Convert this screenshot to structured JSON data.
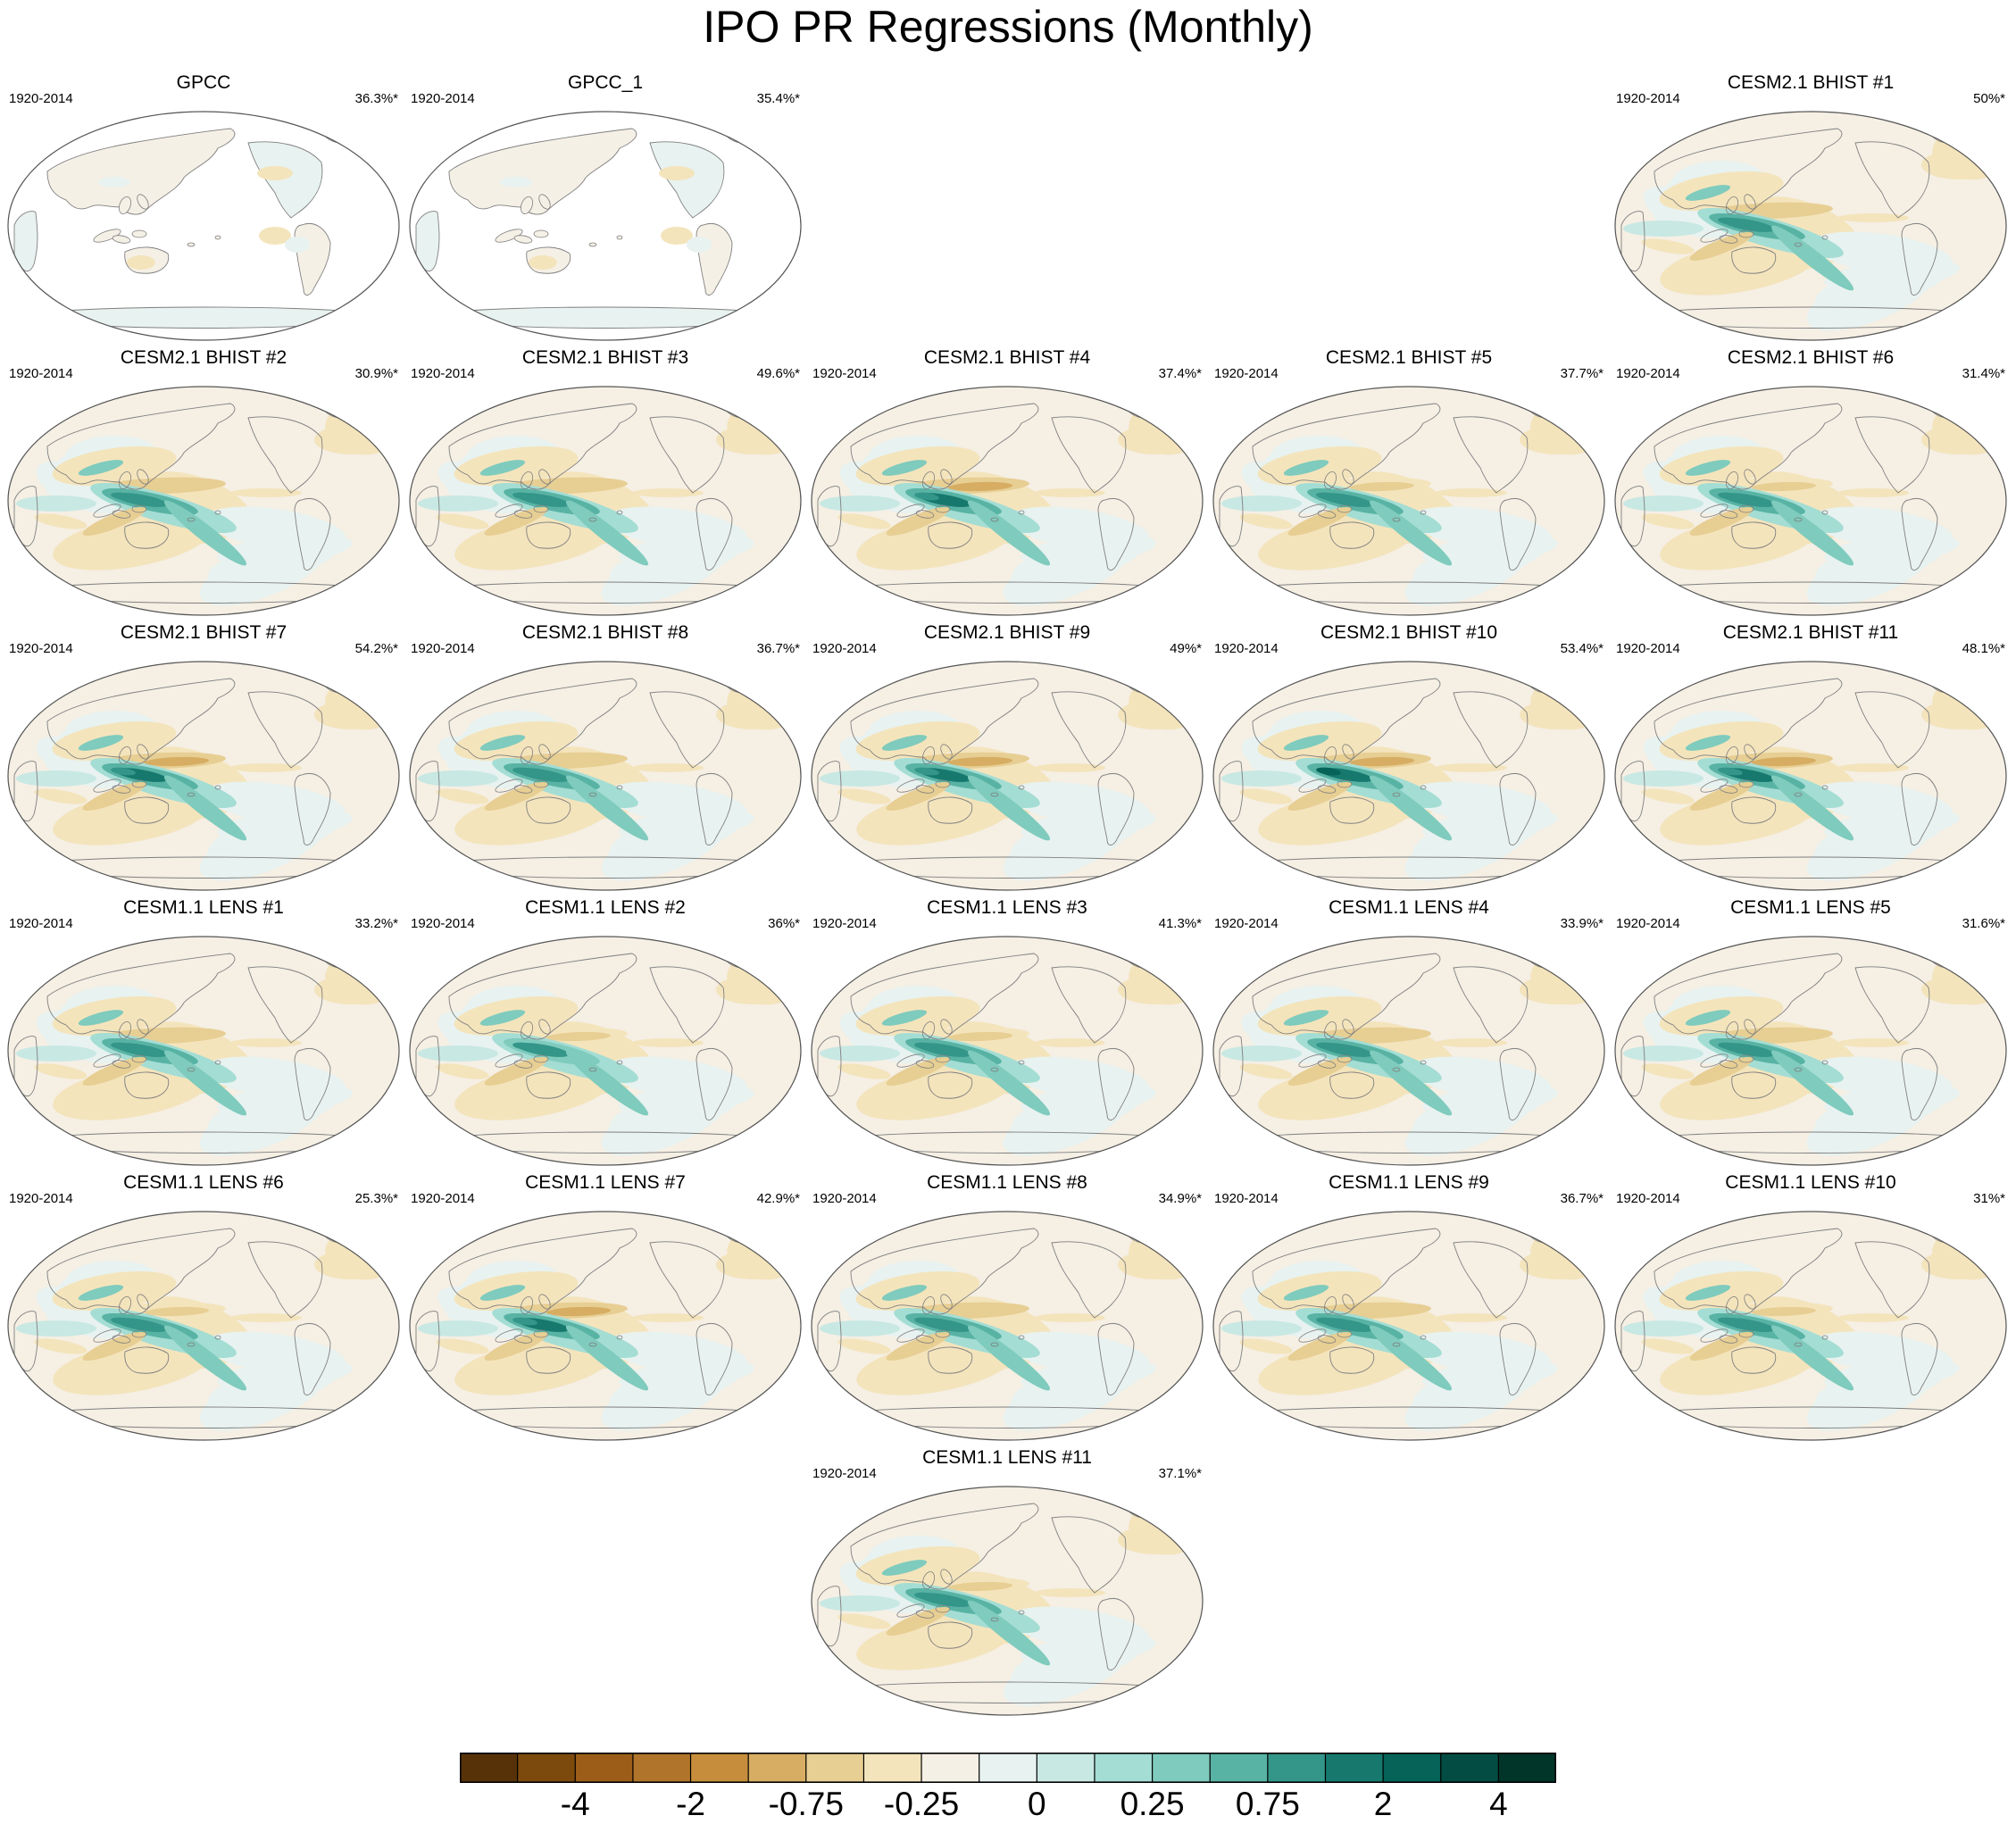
{
  "title": "IPO PR Regressions (Monthly)",
  "colors": {
    "land": "#ffffff",
    "neutral": "#f5efe4",
    "coast": "#7f7f7f",
    "outline": "#555555"
  },
  "colorbar": {
    "colors": [
      "#573209",
      "#7d4a0e",
      "#9b5d18",
      "#b0752a",
      "#c68e3c",
      "#d6ad62",
      "#e7ce93",
      "#f4e4bc",
      "#f5f0e6",
      "#e8f2f0",
      "#c8e8e3",
      "#a4ddd4",
      "#7fcbbd",
      "#58b3a4",
      "#349589",
      "#17796e",
      "#066358",
      "#024c43",
      "#013529"
    ],
    "labels": [
      {
        "text": "-4",
        "index": 2
      },
      {
        "text": "-2",
        "index": 4
      },
      {
        "text": "-0.75",
        "index": 6
      },
      {
        "text": "-0.25",
        "index": 8
      },
      {
        "text": "0",
        "index": 10
      },
      {
        "text": "0.25",
        "index": 12
      },
      {
        "text": "0.75",
        "index": 14
      },
      {
        "text": "2",
        "index": 16
      },
      {
        "text": "4",
        "index": 18
      }
    ]
  },
  "panels": [
    {
      "title": "GPCC",
      "period": "1920-2014",
      "pct": "36.3%*",
      "row": 0,
      "col": 0,
      "type": "obs",
      "strength": 0.3
    },
    {
      "title": "GPCC_1",
      "period": "1920-2014",
      "pct": "35.4%*",
      "row": 0,
      "col": 1,
      "type": "obs",
      "strength": 0.3
    },
    {
      "title": "CESM2.1 BHIST #1",
      "period": "1920-2014",
      "pct": "50%*",
      "row": 0,
      "col": 4,
      "type": "model",
      "strength": 0.8
    },
    {
      "title": "CESM2.1 BHIST #2",
      "period": "1920-2014",
      "pct": "30.9%*",
      "row": 1,
      "col": 0,
      "type": "model",
      "strength": 0.75
    },
    {
      "title": "CESM2.1 BHIST #3",
      "period": "1920-2014",
      "pct": "49.6%*",
      "row": 1,
      "col": 1,
      "type": "model",
      "strength": 0.75
    },
    {
      "title": "CESM2.1 BHIST #4",
      "period": "1920-2014",
      "pct": "37.4%*",
      "row": 1,
      "col": 2,
      "type": "model",
      "strength": 0.9
    },
    {
      "title": "CESM2.1 BHIST #5",
      "period": "1920-2014",
      "pct": "37.7%*",
      "row": 1,
      "col": 3,
      "type": "model",
      "strength": 0.7
    },
    {
      "title": "CESM2.1 BHIST #6",
      "period": "1920-2014",
      "pct": "31.4%*",
      "row": 1,
      "col": 4,
      "type": "model",
      "strength": 0.65
    },
    {
      "title": "CESM2.1 BHIST #7",
      "period": "1920-2014",
      "pct": "54.2%*",
      "row": 2,
      "col": 0,
      "type": "model",
      "strength": 0.95
    },
    {
      "title": "CESM2.1 BHIST #8",
      "period": "1920-2014",
      "pct": "36.7%*",
      "row": 2,
      "col": 1,
      "type": "model",
      "strength": 0.85
    },
    {
      "title": "CESM2.1 BHIST #9",
      "period": "1920-2014",
      "pct": "49%*",
      "row": 2,
      "col": 2,
      "type": "model",
      "strength": 0.9
    },
    {
      "title": "CESM2.1 BHIST #10",
      "period": "1920-2014",
      "pct": "53.4%*",
      "row": 2,
      "col": 3,
      "type": "model",
      "strength": 1.0
    },
    {
      "title": "CESM2.1 BHIST #11",
      "period": "1920-2014",
      "pct": "48.1%*",
      "row": 2,
      "col": 4,
      "type": "model",
      "strength": 0.95
    },
    {
      "title": "CESM1.1 LENS #1",
      "period": "1920-2014",
      "pct": "33.2%*",
      "row": 3,
      "col": 0,
      "type": "model",
      "strength": 0.75
    },
    {
      "title": "CESM1.1 LENS #2",
      "period": "1920-2014",
      "pct": "36%*",
      "row": 3,
      "col": 1,
      "type": "model",
      "strength": 0.5
    },
    {
      "title": "CESM1.1 LENS #3",
      "period": "1920-2014",
      "pct": "41.3%*",
      "row": 3,
      "col": 2,
      "type": "model",
      "strength": 0.7
    },
    {
      "title": "CESM1.1 LENS #4",
      "period": "1920-2014",
      "pct": "33.9%*",
      "row": 3,
      "col": 3,
      "type": "model",
      "strength": 0.75
    },
    {
      "title": "CESM1.1 LENS #5",
      "period": "1920-2014",
      "pct": "31.6%*",
      "row": 3,
      "col": 4,
      "type": "model",
      "strength": 0.75
    },
    {
      "title": "CESM1.1 LENS #6",
      "period": "1920-2014",
      "pct": "25.3%*",
      "row": 4,
      "col": 0,
      "type": "model",
      "strength": 0.7
    },
    {
      "title": "CESM1.1 LENS #7",
      "period": "1920-2014",
      "pct": "42.9%*",
      "row": 4,
      "col": 1,
      "type": "model",
      "strength": 0.95
    },
    {
      "title": "CESM1.1 LENS #8",
      "period": "1920-2014",
      "pct": "34.9%*",
      "row": 4,
      "col": 2,
      "type": "model",
      "strength": 0.75
    },
    {
      "title": "CESM1.1 LENS #9",
      "period": "1920-2014",
      "pct": "36.7%*",
      "row": 4,
      "col": 3,
      "type": "model",
      "strength": 0.75
    },
    {
      "title": "CESM1.1 LENS #10",
      "period": "1920-2014",
      "pct": "31%*",
      "row": 4,
      "col": 4,
      "type": "model",
      "strength": 0.7
    },
    {
      "title": "CESM1.1 LENS #11",
      "period": "1920-2014",
      "pct": "37.1%*",
      "row": 5,
      "col": 2,
      "type": "model",
      "strength": 0.7
    }
  ]
}
